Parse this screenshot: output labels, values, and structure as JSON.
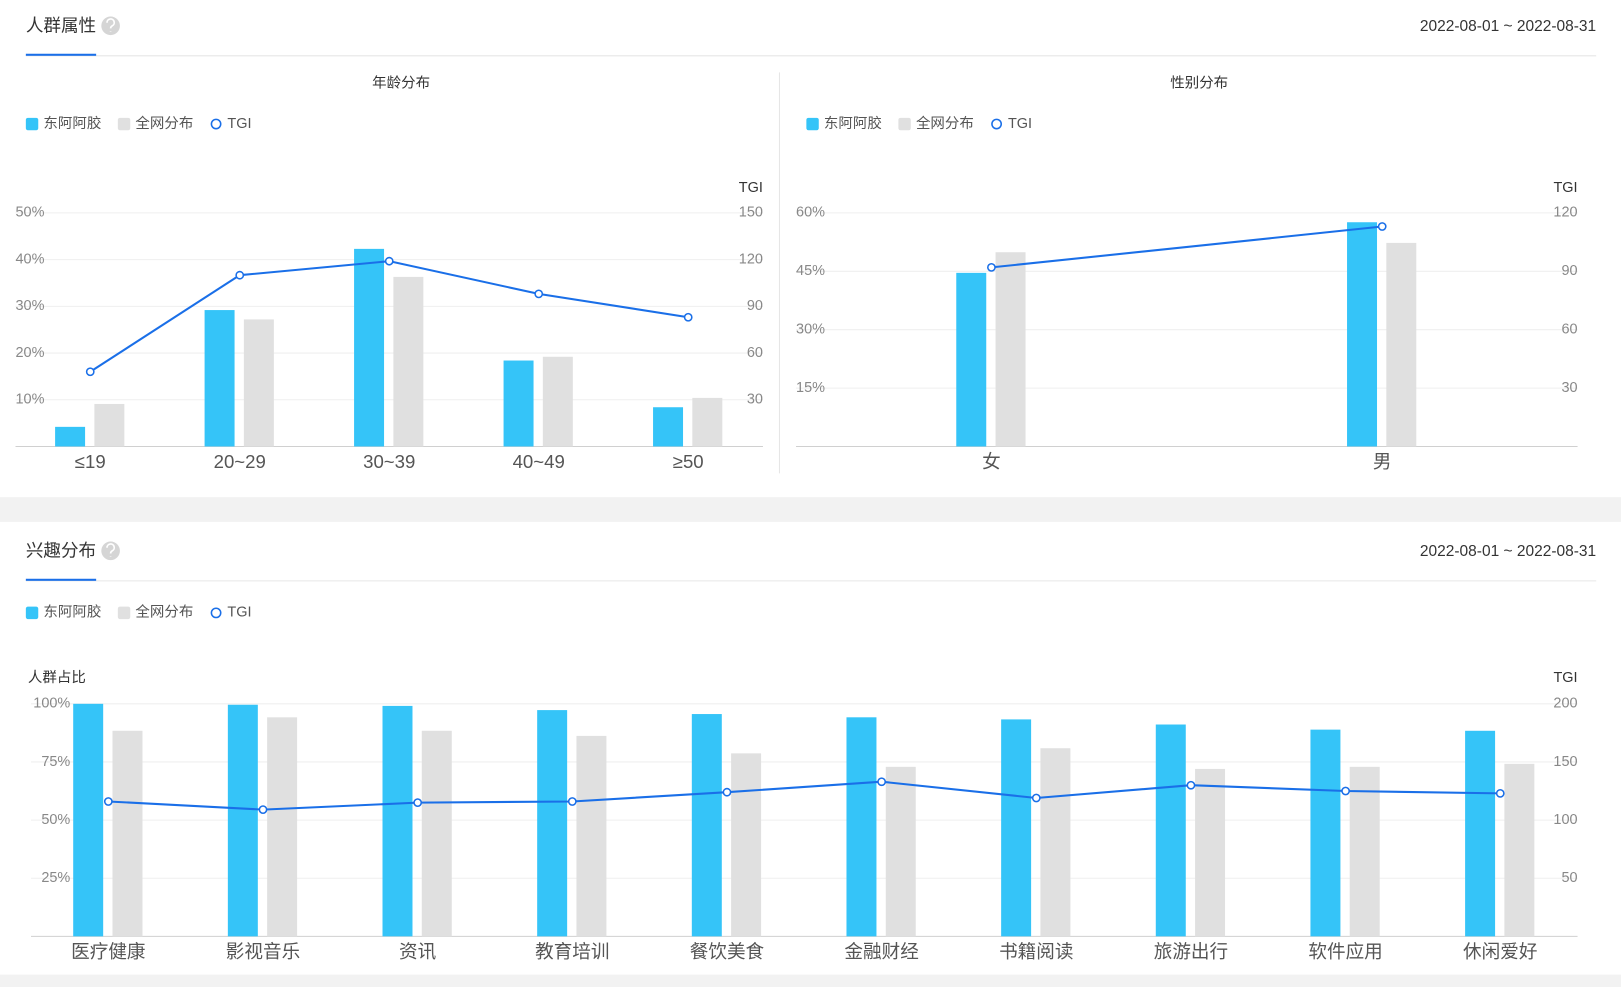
{
  "sections": [
    {
      "title": "人群属性",
      "date_range": "2022-08-01 ~ 2022-08-31"
    },
    {
      "title": "兴趣分布",
      "date_range": "2022-08-01 ~ 2022-08-31"
    }
  ],
  "chart_data": [
    {
      "type": "bar",
      "title": "年龄分布",
      "y2_label": "TGI",
      "categories": [
        "≤19",
        "20~29",
        "30~39",
        "40~49",
        "≥50"
      ],
      "series": [
        {
          "name": "东阿阿胶",
          "type": "bar",
          "color": "#35c4f8",
          "values": [
            4.2,
            29.2,
            42.3,
            18.4,
            8.4
          ]
        },
        {
          "name": "全网分布",
          "type": "bar",
          "color": "#e0e0e0",
          "values": [
            9.1,
            27.2,
            36.3,
            19.2,
            10.4
          ]
        },
        {
          "name": "TGI",
          "type": "line",
          "axis": "y2",
          "color": "#1a6fe8",
          "values": [
            48,
            110,
            119,
            98,
            83
          ]
        }
      ],
      "ylim": [
        0,
        50
      ],
      "yticks": [
        {
          "value": 10,
          "label": "10%"
        },
        {
          "value": 20,
          "label": "20%"
        },
        {
          "value": 30,
          "label": "30%"
        },
        {
          "value": 40,
          "label": "40%"
        },
        {
          "value": 50,
          "label": "50%"
        }
      ],
      "y2lim": [
        0,
        150
      ],
      "y2ticks": [
        30,
        60,
        90,
        120,
        150
      ],
      "grid": true
    },
    {
      "type": "bar",
      "title": "性别分布",
      "y2_label": "TGI",
      "categories": [
        "女",
        "男"
      ],
      "series": [
        {
          "name": "东阿阿胶",
          "type": "bar",
          "color": "#35c4f8",
          "values": [
            44.6,
            57.6
          ]
        },
        {
          "name": "全网分布",
          "type": "bar",
          "color": "#e0e0e0",
          "values": [
            49.9,
            52.3
          ]
        },
        {
          "name": "TGI",
          "type": "line",
          "axis": "y2",
          "color": "#1a6fe8",
          "values": [
            92,
            113
          ]
        }
      ],
      "ylim": [
        0,
        60
      ],
      "yticks": [
        {
          "value": 15,
          "label": "15%"
        },
        {
          "value": 30,
          "label": "30%"
        },
        {
          "value": 45,
          "label": "45%"
        },
        {
          "value": 60,
          "label": "60%"
        }
      ],
      "y2lim": [
        0,
        120
      ],
      "y2ticks": [
        30,
        60,
        90,
        120
      ],
      "grid": true
    },
    {
      "type": "bar",
      "y_label": "人群占比",
      "y2_label": "TGI",
      "categories": [
        "医疗健康",
        "影视音乐",
        "资讯",
        "教育培训",
        "餐饮美食",
        "金融财经",
        "书籍阅读",
        "旅游出行",
        "软件应用",
        "休闲爱好"
      ],
      "series": [
        {
          "name": "东阿阿胶",
          "type": "bar",
          "color": "#35c4f8",
          "values": [
            100,
            99.6,
            99.1,
            97.3,
            95.6,
            94.2,
            93.3,
            91.1,
            88.9,
            88.4
          ]
        },
        {
          "name": "全网分布",
          "type": "bar",
          "color": "#e0e0e0",
          "values": [
            88.4,
            94.2,
            88.4,
            86.2,
            78.7,
            72.9,
            80.9,
            72,
            72.9,
            74.2
          ]
        },
        {
          "name": "TGI",
          "type": "line",
          "axis": "y2",
          "color": "#1a6fe8",
          "values": [
            116,
            109,
            115,
            116,
            124,
            133,
            119,
            130,
            125,
            123
          ]
        }
      ],
      "ylim": [
        0,
        100
      ],
      "yticks": [
        {
          "value": 25,
          "label": "25%"
        },
        {
          "value": 50,
          "label": "50%"
        },
        {
          "value": 75,
          "label": "75%"
        },
        {
          "value": 100,
          "label": "100%"
        }
      ],
      "y2lim": [
        0,
        200
      ],
      "y2ticks": [
        50,
        100,
        150,
        200
      ],
      "grid": true
    }
  ]
}
